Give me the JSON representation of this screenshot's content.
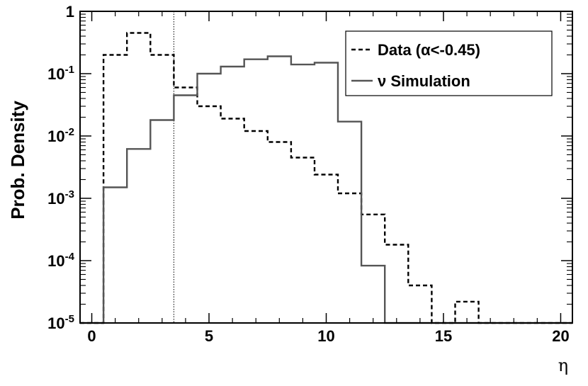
{
  "chart_data": {
    "type": "line",
    "xlabel": "η",
    "ylabel": "Prob. Density",
    "xlim": [
      -0.5,
      20.5
    ],
    "ylim": [
      1e-05,
      1
    ],
    "yscale": "log",
    "x_ticks": [
      "0",
      "5",
      "10",
      "15",
      "20"
    ],
    "y_ticks": [
      "10-5",
      "10-4",
      "10-3",
      "10-2",
      "10-1",
      "1"
    ],
    "y_tick_parts": [
      {
        "base": "10",
        "exp": "-5"
      },
      {
        "base": "10",
        "exp": "-4"
      },
      {
        "base": "10",
        "exp": "-3"
      },
      {
        "base": "10",
        "exp": "-2"
      },
      {
        "base": "10",
        "exp": "-1"
      },
      {
        "base": "1",
        "exp": ""
      }
    ],
    "bin_edges": [
      -0.5,
      0.5,
      1.5,
      2.5,
      3.5,
      4.5,
      5.5,
      6.5,
      7.5,
      8.5,
      9.5,
      10.5,
      11.5,
      12.5,
      13.5,
      14.5,
      15.5,
      16.5,
      17.5,
      18.5,
      19.5,
      20.5
    ],
    "vline_x": 3.5,
    "legend_position": "top-right",
    "series": [
      {
        "name": "Data (α<-0.45)",
        "style": "dashed",
        "color": "#000000",
        "values": [
          1e-05,
          0.2,
          0.45,
          0.2,
          0.06,
          0.03,
          0.019,
          0.012,
          0.008,
          0.0045,
          0.0024,
          0.0012,
          0.00055,
          0.00018,
          4e-05,
          1e-05,
          2.2e-05,
          1e-05,
          1e-05,
          1e-05,
          1e-05
        ]
      },
      {
        "name": "ν Simulation",
        "style": "solid",
        "color": "#555555",
        "values": [
          1e-05,
          0.0015,
          0.0062,
          0.018,
          0.045,
          0.1,
          0.13,
          0.17,
          0.19,
          0.14,
          0.15,
          0.017,
          8.3e-05,
          1e-05,
          1e-05,
          1e-05,
          1e-05,
          1e-05,
          1e-05,
          1e-05,
          1e-05
        ]
      }
    ]
  }
}
